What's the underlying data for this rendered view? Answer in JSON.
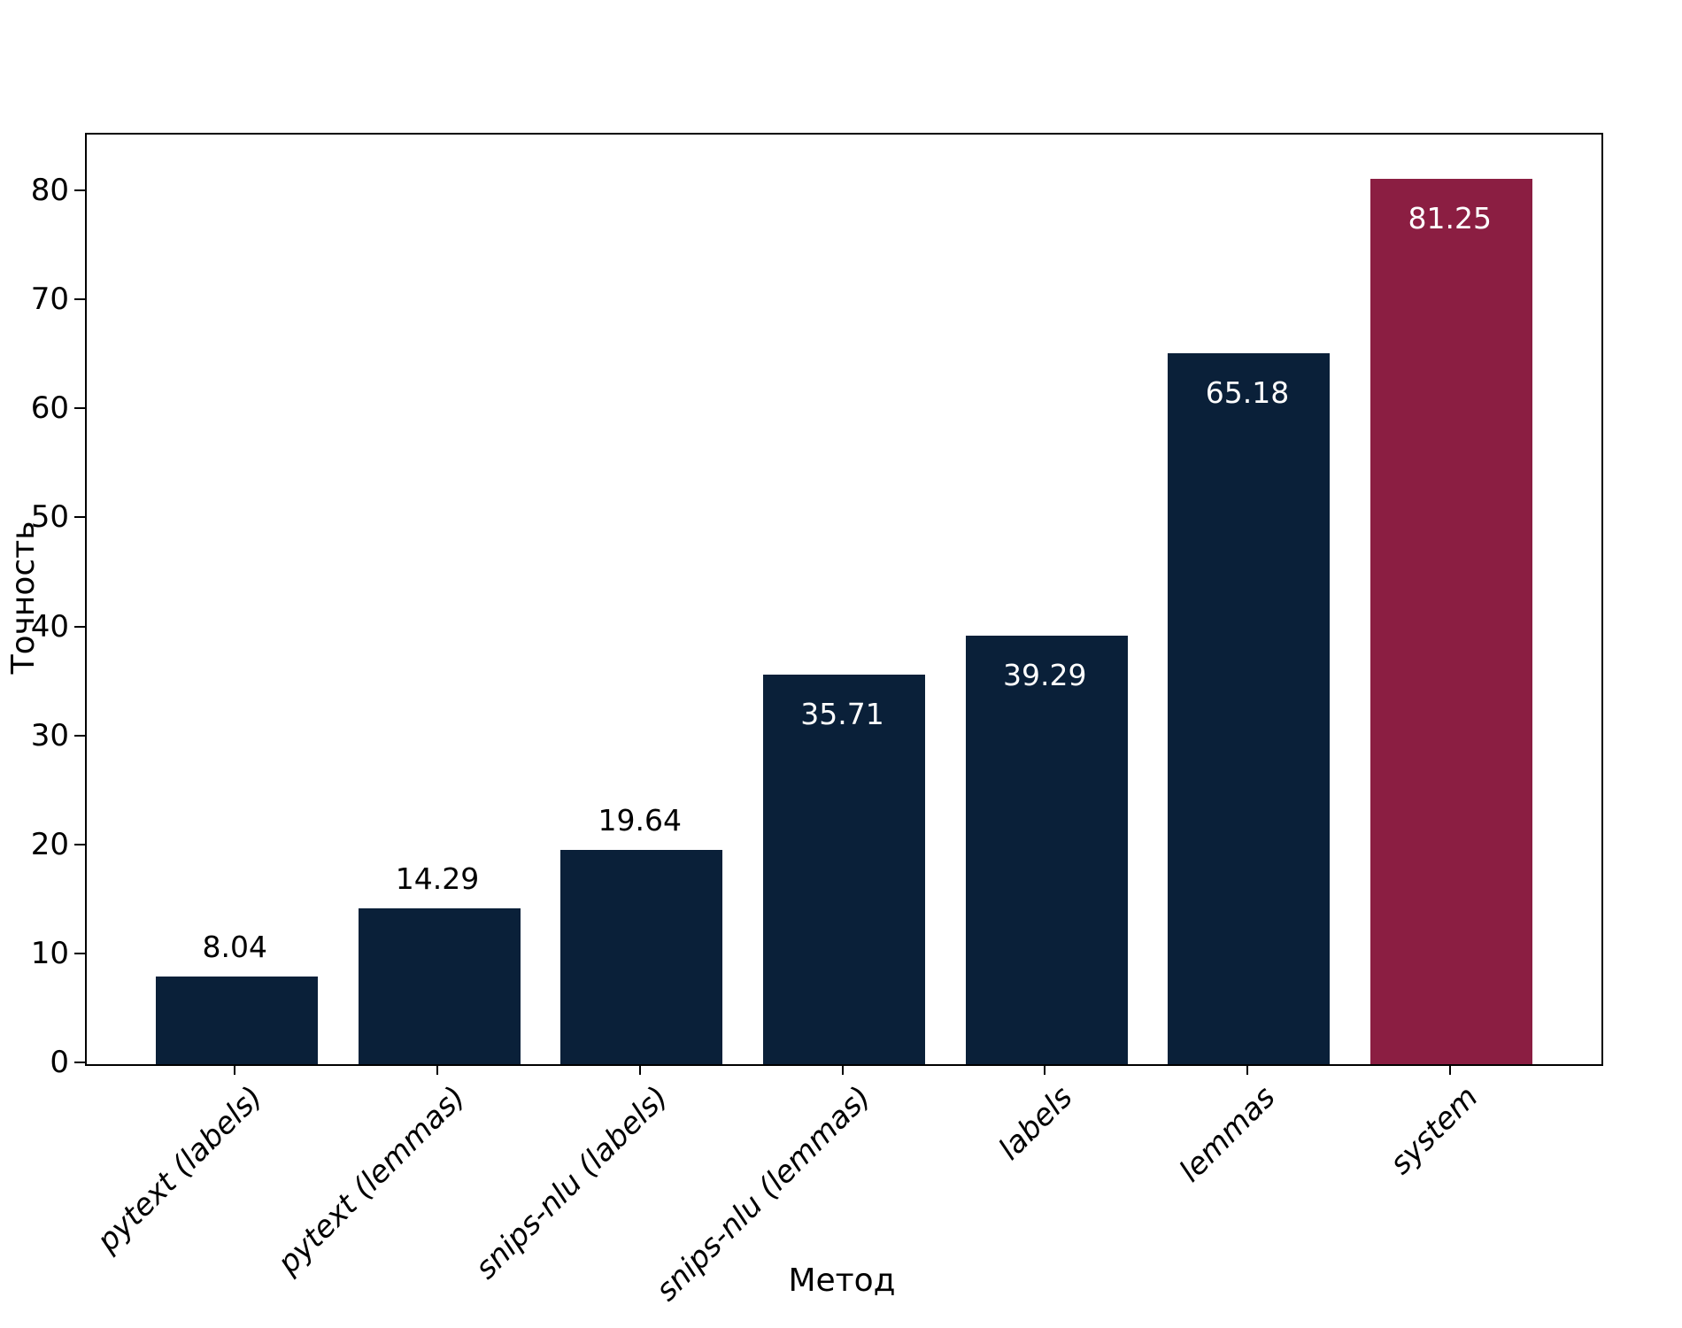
{
  "figure": {
    "background": "#ffffff"
  },
  "chart_data": {
    "type": "bar",
    "title": "",
    "xlabel": "Метод",
    "ylabel": "Точность",
    "categories": [
      "pytext (labels)",
      "pytext (lemmas)",
      "snips-nlu (labels)",
      "snips-nlu (lemmas)",
      "labels",
      "lemmas",
      "system"
    ],
    "values": [
      8.04,
      14.29,
      19.64,
      35.71,
      39.29,
      65.18,
      81.25
    ],
    "bar_labels": [
      "8.04",
      "14.29",
      "19.64",
      "35.71",
      "39.29",
      "65.18",
      "81.25"
    ],
    "label_inside": [
      false,
      false,
      false,
      true,
      true,
      true,
      true
    ],
    "highlight_index": 6,
    "yticks": [
      0,
      10,
      20,
      30,
      40,
      50,
      60,
      70,
      80
    ],
    "ylim": [
      0,
      85.3
    ],
    "grid": false,
    "legend_position": "none",
    "colors": {
      "bar": "#0a2039",
      "highlight_bar": "#8b1e42",
      "label_outside": "#000000",
      "label_inside": "#ffffff",
      "axis": "#000000",
      "background": "#ffffff"
    }
  }
}
